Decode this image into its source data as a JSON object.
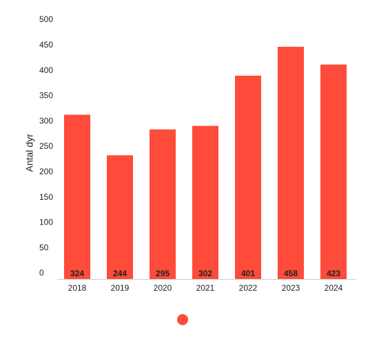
{
  "chart_data": {
    "type": "bar",
    "y_label": "Antal dyr",
    "categories": [
      "2018",
      "2019",
      "2020",
      "2021",
      "2022",
      "2023",
      "2024"
    ],
    "values": [
      324,
      244,
      295,
      302,
      401,
      458,
      423
    ],
    "color": "#ff4b3a",
    "ylim": [
      0,
      500
    ],
    "yticks": [
      0,
      50,
      100,
      150,
      200,
      250,
      300,
      350,
      400,
      450,
      500
    ],
    "grid": false
  }
}
